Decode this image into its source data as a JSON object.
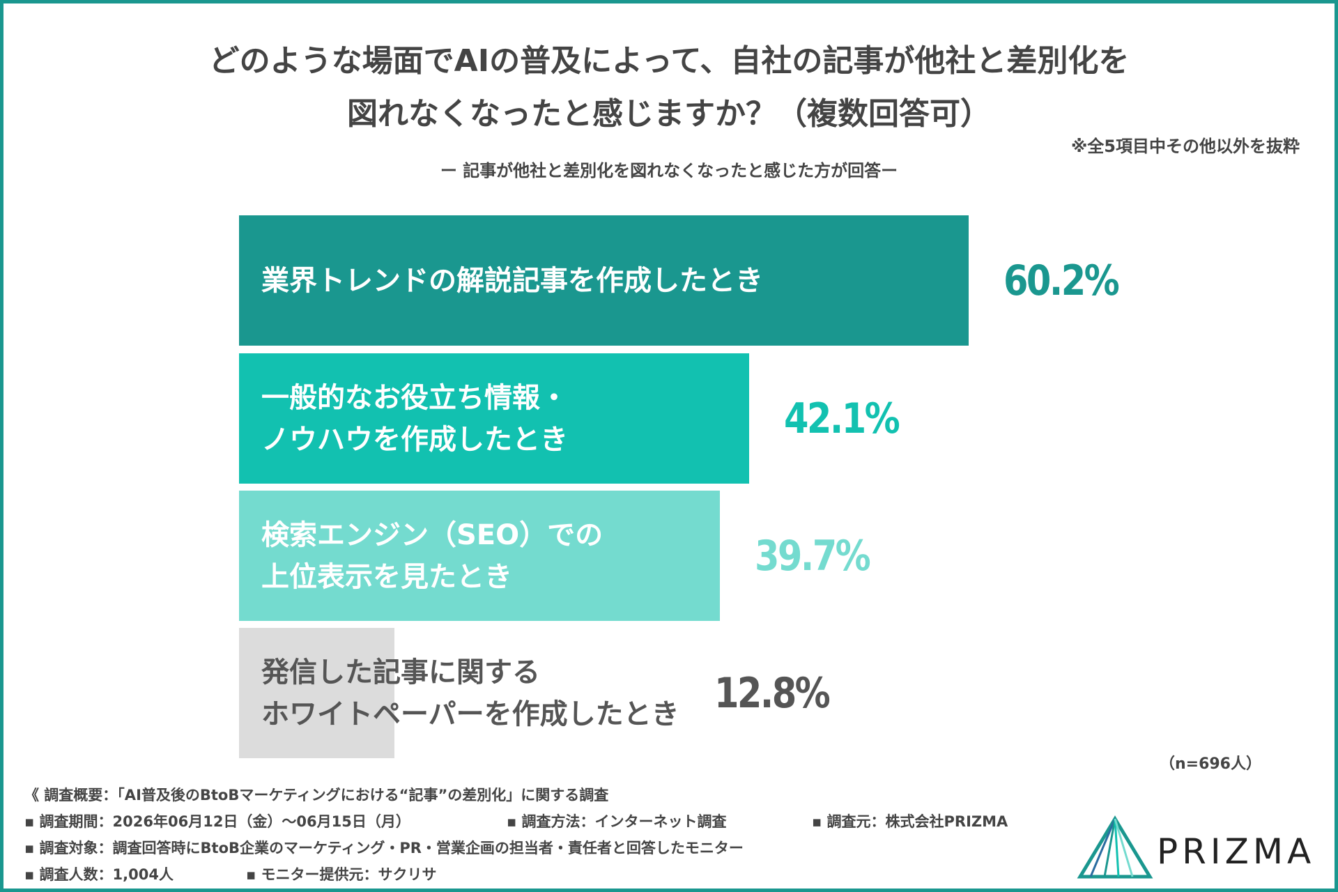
{
  "chart_data": {
    "type": "barh",
    "title": "どのような場面でAIの普及によって、自社の記事が他社と差別化を\n図れなくなったと感じますか？（複数回答可）",
    "note": "※全5項目中その他以外を抜粋",
    "subtitle": "ー 記事が他社と差別化を図れなくなったと感じた方が回答ー",
    "categories": [
      "業界トレンドの解説記事を作成したとき",
      "一般的なお役立ち情報・\nノウハウを作成したとき",
      "検索エンジン（SEO）での\n上位表示を見たとき",
      "発信した記事に関する\nホワイトペーパーを作成したとき"
    ],
    "values": [
      60.2,
      42.1,
      39.7,
      12.8
    ],
    "value_labels": [
      "60.2%",
      "42.1%",
      "39.7%",
      "12.8%"
    ],
    "colors": [
      "#1a978f",
      "#12c1b0",
      "#74dbcf",
      "#dcdcdc"
    ],
    "label_colors": [
      "#ffffff",
      "#ffffff",
      "#ffffff",
      "#555555"
    ],
    "value_label_colors": [
      "#1a978f",
      "#12c1b0",
      "#74dbcf",
      "#555555"
    ],
    "sample_size": "（n=696人）"
  },
  "footer": {
    "lines": [
      [
        "《 調査概要：「AI普及後のBtoBマーケティングにおける“記事”の差別化」に関する調査"
      ],
      [
        "▪ 調査期間：2026年06月12日（金）～06月15日（月）",
        "▪ 調査方法：インターネット調査",
        "▪ 調査元：株式会社PRIZMA"
      ],
      [
        "▪ 調査対象：調査回答時にBtoB企業のマーケティング・PR・営業企画の担当者・責任者と回答したモニター"
      ],
      [
        "▪ 調査人数：1,004人",
        "▪ モニター提供元：サクリサ"
      ]
    ],
    "logo": "PRIZMA"
  }
}
